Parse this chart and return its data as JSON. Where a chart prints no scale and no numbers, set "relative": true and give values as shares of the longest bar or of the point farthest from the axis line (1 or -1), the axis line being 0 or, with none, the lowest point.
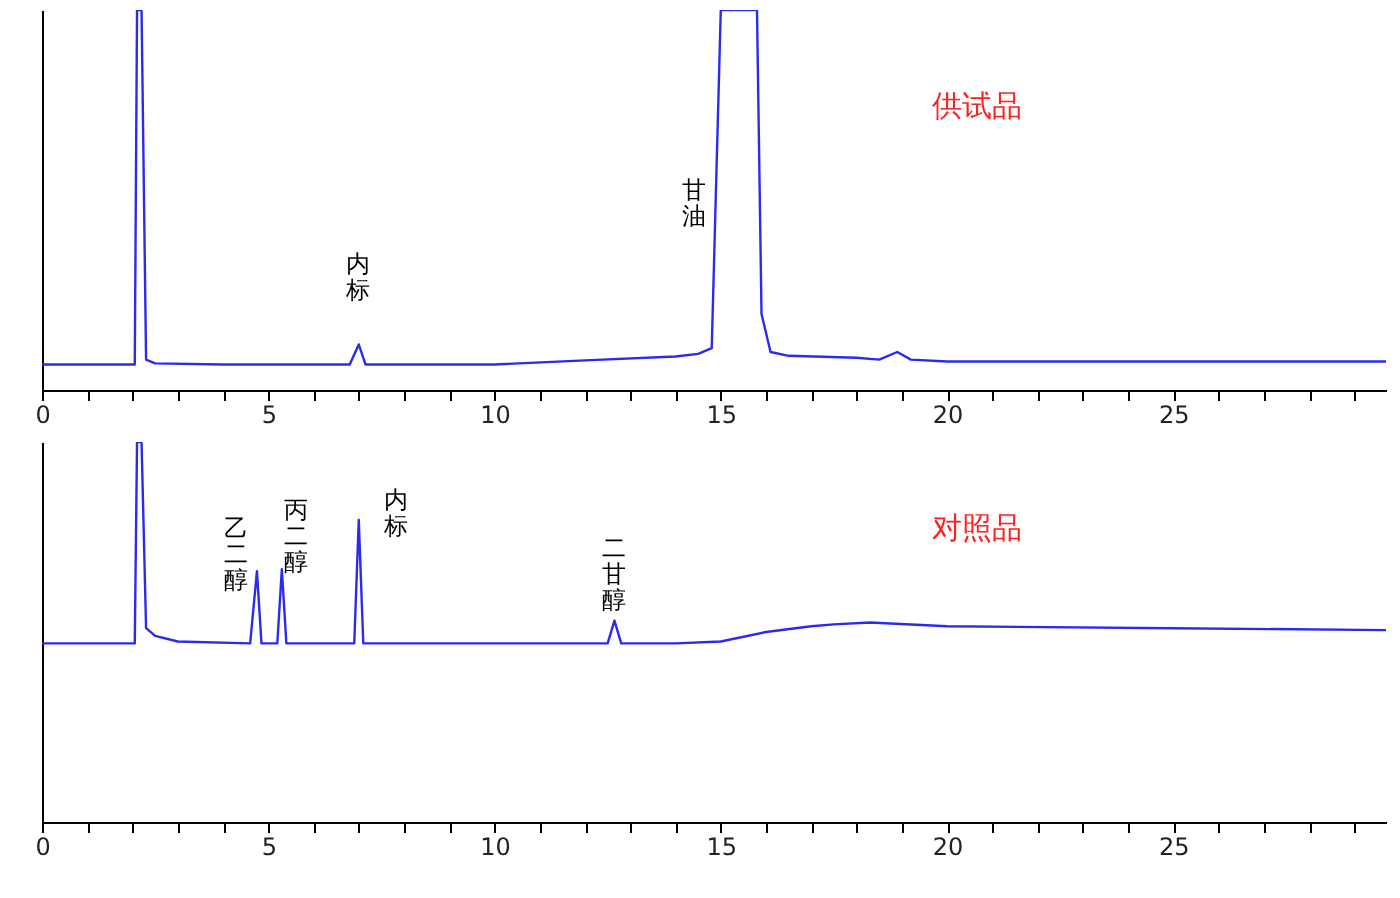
{
  "chart_data": [
    {
      "type": "line",
      "relative": true,
      "tick_labels": "x",
      "xlim": [
        0,
        29.7
      ],
      "xticks": [
        0,
        {
          "value": 1,
          "label": null
        },
        {
          "value": 2,
          "label": null
        },
        {
          "value": 3,
          "label": null
        },
        {
          "value": 4,
          "label": null
        },
        5,
        {
          "value": 6,
          "label": null
        },
        {
          "value": 7,
          "label": null
        },
        {
          "value": 8,
          "label": null
        },
        {
          "value": 9,
          "label": null
        },
        10,
        {
          "value": 11,
          "label": null
        },
        {
          "value": 12,
          "label": null
        },
        {
          "value": 13,
          "label": null
        },
        {
          "value": 14,
          "label": null
        },
        15,
        {
          "value": 16,
          "label": null
        },
        {
          "value": 17,
          "label": null
        },
        {
          "value": 18,
          "label": null
        },
        {
          "value": 19,
          "label": null
        },
        20,
        {
          "value": 21,
          "label": null
        },
        {
          "value": 22,
          "label": null
        },
        {
          "value": 23,
          "label": null
        },
        {
          "value": 24,
          "label": null
        },
        25,
        {
          "value": 26,
          "label": null
        },
        {
          "value": 27,
          "label": null
        },
        {
          "value": 28,
          "label": null
        },
        {
          "value": 29,
          "label": null
        }
      ],
      "series": [
        {
          "color": "#2b2bf0",
          "x": [
            0,
            2.05,
            2.1,
            2.2,
            2.3,
            2.5,
            4,
            6.8,
            7.0,
            7.15,
            10,
            12,
            14,
            14.5,
            14.8,
            15.0,
            15.8,
            15.9,
            16.1,
            16.5,
            18,
            18.5,
            18.9,
            19.2,
            20,
            29.7
          ],
          "values": [
            0.067,
            0.067,
            1,
            1,
            0.08,
            0.07,
            0.067,
            0.067,
            0.12,
            0.067,
            0.067,
            0.078,
            0.088,
            0.095,
            0.11,
            1,
            1,
            0.2,
            0.1,
            0.09,
            0.085,
            0.08,
            0.1,
            0.08,
            0.075,
            0.075
          ]
        }
      ],
      "annotations": [
        "内标",
        "甘油",
        "供试品"
      ]
    },
    {
      "type": "line",
      "relative": true,
      "tick_labels": "x",
      "xlim": [
        0,
        29.7
      ],
      "xticks": [
        0,
        {
          "value": 1,
          "label": null
        },
        {
          "value": 2,
          "label": null
        },
        {
          "value": 3,
          "label": null
        },
        {
          "value": 4,
          "label": null
        },
        5,
        {
          "value": 6,
          "label": null
        },
        {
          "value": 7,
          "label": null
        },
        {
          "value": 8,
          "label": null
        },
        {
          "value": 9,
          "label": null
        },
        10,
        {
          "value": 11,
          "label": null
        },
        {
          "value": 12,
          "label": null
        },
        {
          "value": 13,
          "label": null
        },
        {
          "value": 14,
          "label": null
        },
        15,
        {
          "value": 16,
          "label": null
        },
        {
          "value": 17,
          "label": null
        },
        {
          "value": 18,
          "label": null
        },
        {
          "value": 19,
          "label": null
        },
        20,
        {
          "value": 21,
          "label": null
        },
        {
          "value": 22,
          "label": null
        },
        {
          "value": 23,
          "label": null
        },
        {
          "value": 24,
          "label": null
        },
        25,
        {
          "value": 26,
          "label": null
        },
        {
          "value": 27,
          "label": null
        },
        {
          "value": 28,
          "label": null
        },
        {
          "value": 29,
          "label": null
        }
      ],
      "series": [
        {
          "color": "#2b2bf0",
          "x": [
            0,
            2.05,
            2.1,
            2.2,
            2.3,
            2.5,
            3,
            4.6,
            4.75,
            4.85,
            5.2,
            5.3,
            5.4,
            6.9,
            7.0,
            7.1,
            12.5,
            12.65,
            12.8,
            14,
            15,
            16,
            17,
            17.5,
            18.3,
            20,
            25,
            29.7
          ],
          "values": [
            0.47,
            0.47,
            1,
            1,
            0.51,
            0.49,
            0.475,
            0.47,
            0.66,
            0.47,
            0.47,
            0.665,
            0.47,
            0.47,
            0.795,
            0.47,
            0.47,
            0.53,
            0.47,
            0.47,
            0.475,
            0.5,
            0.515,
            0.52,
            0.525,
            0.515,
            0.51,
            0.505
          ]
        }
      ],
      "annotations": [
        "乙二醇",
        "丙二醇",
        "内标",
        "二甘醇",
        "对照品"
      ]
    }
  ]
}
